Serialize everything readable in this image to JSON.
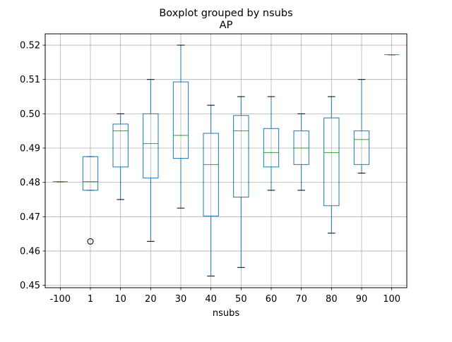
{
  "chart_data": {
    "type": "boxplot",
    "suptitle": "Boxplot grouped by nsubs",
    "title": "AP",
    "xlabel": "nsubs",
    "ylabel": "",
    "categories": [
      "-100",
      "1",
      "10",
      "20",
      "30",
      "40",
      "50",
      "60",
      "70",
      "80",
      "90",
      "100"
    ],
    "ylim": [
      0.4493,
      0.5233
    ],
    "yticks": [
      "0.45",
      "0.46",
      "0.47",
      "0.48",
      "0.49",
      "0.50",
      "0.51",
      "0.52"
    ],
    "grid": true,
    "box_color": "#1f77b4",
    "median_color": "#2ca02c",
    "whisker_cap_color": "#000000",
    "series": [
      {
        "category": "-100",
        "whisker_low": 0.4802,
        "q1": 0.4802,
        "median": 0.4802,
        "q3": 0.4802,
        "whisker_high": 0.4802,
        "outliers": []
      },
      {
        "category": "1",
        "whisker_low": 0.4777,
        "q1": 0.4777,
        "median": 0.4802,
        "q3": 0.4875,
        "whisker_high": 0.4875,
        "outliers": [
          0.4628
        ]
      },
      {
        "category": "10",
        "whisker_low": 0.475,
        "q1": 0.4845,
        "median": 0.495,
        "q3": 0.497,
        "whisker_high": 0.5,
        "outliers": []
      },
      {
        "category": "20",
        "whisker_low": 0.4628,
        "q1": 0.4813,
        "median": 0.4913,
        "q3": 0.5,
        "whisker_high": 0.51,
        "outliers": []
      },
      {
        "category": "30",
        "whisker_low": 0.4725,
        "q1": 0.487,
        "median": 0.4937,
        "q3": 0.5093,
        "whisker_high": 0.52,
        "outliers": []
      },
      {
        "category": "40",
        "whisker_low": 0.4527,
        "q1": 0.4702,
        "median": 0.4852,
        "q3": 0.4943,
        "whisker_high": 0.5025,
        "outliers": []
      },
      {
        "category": "50",
        "whisker_low": 0.4552,
        "q1": 0.4757,
        "median": 0.495,
        "q3": 0.4995,
        "whisker_high": 0.505,
        "outliers": []
      },
      {
        "category": "60",
        "whisker_low": 0.4777,
        "q1": 0.4845,
        "median": 0.4887,
        "q3": 0.4957,
        "whisker_high": 0.505,
        "outliers": []
      },
      {
        "category": "70",
        "whisker_low": 0.4777,
        "q1": 0.4852,
        "median": 0.49,
        "q3": 0.495,
        "whisker_high": 0.5,
        "outliers": []
      },
      {
        "category": "80",
        "whisker_low": 0.4652,
        "q1": 0.4732,
        "median": 0.4887,
        "q3": 0.4988,
        "whisker_high": 0.505,
        "outliers": []
      },
      {
        "category": "90",
        "whisker_low": 0.4827,
        "q1": 0.4852,
        "median": 0.4925,
        "q3": 0.495,
        "whisker_high": 0.51,
        "outliers": []
      },
      {
        "category": "100",
        "whisker_low": 0.5172,
        "q1": 0.5172,
        "median": 0.5172,
        "q3": 0.5172,
        "whisker_high": 0.5172,
        "outliers": []
      }
    ]
  }
}
